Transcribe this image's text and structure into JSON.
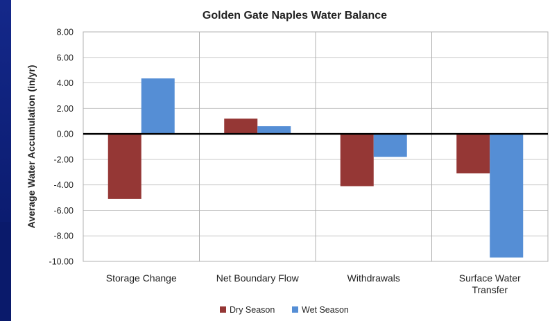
{
  "chart_data": {
    "type": "bar",
    "title": "Golden Gate Naples Water Balance",
    "ylabel": "Average Water Accumulation (in/yr)",
    "xlabel": "",
    "ylim": [
      -10,
      8
    ],
    "yticks": [
      "8.00",
      "6.00",
      "4.00",
      "2.00",
      "0.00",
      "-2.00",
      "-4.00",
      "-6.00",
      "-8.00",
      "-10.00"
    ],
    "categories": [
      [
        "Storage Change"
      ],
      [
        "Net Boundary Flow"
      ],
      [
        "Withdrawals"
      ],
      [
        "Surface Water",
        "Transfer"
      ]
    ],
    "series": [
      {
        "name": "Dry Season",
        "color": "#953735",
        "values": [
          -5.1,
          1.2,
          -4.1,
          -3.1
        ]
      },
      {
        "name": "Wet Season",
        "color": "#558ed5",
        "values": [
          4.35,
          0.6,
          -1.8,
          -9.7
        ]
      }
    ],
    "grid": true,
    "legend": "bottom"
  }
}
